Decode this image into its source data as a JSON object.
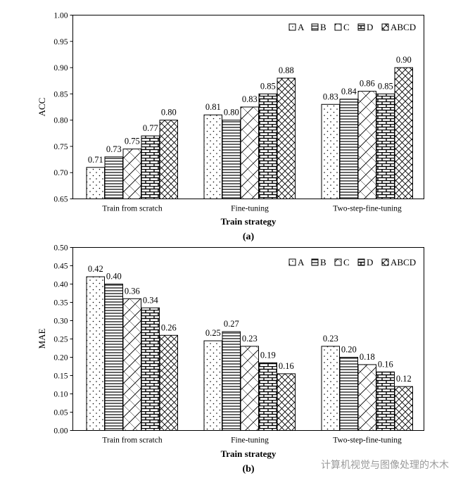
{
  "panels": [
    {
      "panel_label": "(a)",
      "chart_data": {
        "type": "bar",
        "title": "",
        "xlabel": "Train strategy",
        "ylabel": "ACC",
        "ylim": [
          0.65,
          1.0
        ],
        "yticks": [
          "0.65",
          "0.70",
          "0.75",
          "0.80",
          "0.85",
          "0.90",
          "0.95",
          "1.00"
        ],
        "categories": [
          "Train from scratch",
          "Fine-tuning",
          "Two-step-fine-tuning"
        ],
        "legend_position": "top-right",
        "series": [
          {
            "name": "A",
            "pattern": "dots",
            "values": [
              0.71,
              0.81,
              0.83
            ],
            "labels": [
              "0.71",
              "0.81",
              "0.83"
            ]
          },
          {
            "name": "B",
            "pattern": "hlines",
            "values": [
              0.73,
              0.8,
              0.84
            ],
            "labels": [
              "0.73",
              "0.80",
              "0.84"
            ]
          },
          {
            "name": "C",
            "pattern": "diag-cross",
            "values": [
              0.745,
              0.825,
              0.855
            ],
            "labels": [
              "0.75",
              "0.83",
              "0.86"
            ]
          },
          {
            "name": "D",
            "pattern": "brick",
            "values": [
              0.77,
              0.85,
              0.85
            ],
            "labels": [
              "0.77",
              "0.85",
              "0.85"
            ]
          },
          {
            "name": "ABCD",
            "pattern": "crosshatch",
            "values": [
              0.8,
              0.88,
              0.9
            ],
            "labels": [
              "0.80",
              "0.88",
              "0.90"
            ]
          }
        ]
      }
    },
    {
      "panel_label": "(b)",
      "chart_data": {
        "type": "bar",
        "title": "",
        "xlabel": "Train strategy",
        "ylabel": "MAE",
        "ylim": [
          0.0,
          0.5
        ],
        "yticks": [
          "0.00",
          "0.05",
          "0.10",
          "0.15",
          "0.20",
          "0.25",
          "0.30",
          "0.35",
          "0.40",
          "0.45",
          "0.50"
        ],
        "categories": [
          "Train from scratch",
          "Fine-tuning",
          "Two-step-fine-tuning"
        ],
        "legend_position": "top-right",
        "series": [
          {
            "name": "A",
            "pattern": "dots",
            "values": [
              0.42,
              0.245,
              0.23
            ],
            "labels": [
              "0.42",
              "0.25",
              "0.23"
            ]
          },
          {
            "name": "B",
            "pattern": "hlines",
            "values": [
              0.4,
              0.27,
              0.2
            ],
            "labels": [
              "0.40",
              "0.27",
              "0.20"
            ]
          },
          {
            "name": "C",
            "pattern": "diag-cross",
            "values": [
              0.36,
              0.23,
              0.18
            ],
            "labels": [
              "0.36",
              "0.23",
              "0.18"
            ]
          },
          {
            "name": "D",
            "pattern": "brick",
            "values": [
              0.335,
              0.185,
              0.16
            ],
            "labels": [
              "0.34",
              "0.19",
              "0.16"
            ]
          },
          {
            "name": "ABCD",
            "pattern": "crosshatch",
            "values": [
              0.26,
              0.155,
              0.12
            ],
            "labels": [
              "0.26",
              "0.16",
              "0.12"
            ]
          }
        ]
      }
    }
  ],
  "watermark": "计算机视觉与图像处理的木木"
}
